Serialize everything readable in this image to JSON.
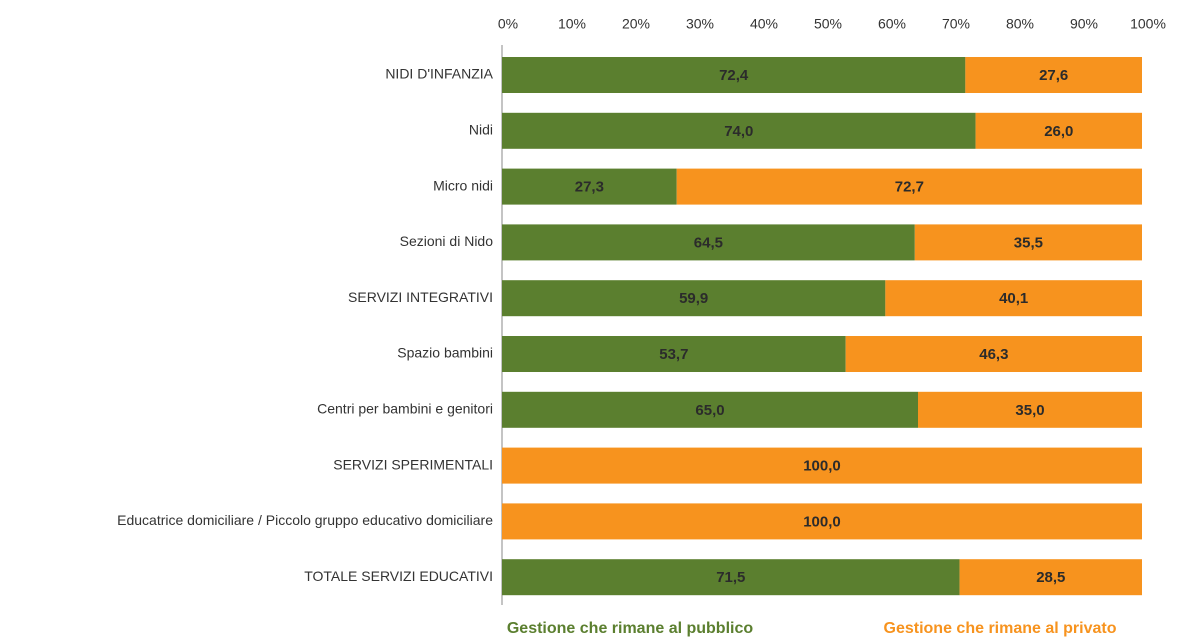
{
  "chart_data": {
    "type": "stacked_bar_horizontal",
    "categories": [
      "NIDI D'INFANZIA",
      "Nidi",
      "Micro nidi",
      "Sezioni di Nido",
      "SERVIZI INTEGRATIVI",
      "Spazio bambini",
      "Centri per bambini e genitori",
      "SERVIZI SPERIMENTALI",
      "Educatrice domiciliare / Piccolo gruppo educativo domiciliare",
      "TOTALE SERVIZI EDUCATIVI"
    ],
    "series": [
      {
        "name": "Gestione che rimane al pubblico",
        "color": "#5b7f2f",
        "values": [
          72.4,
          74.0,
          27.3,
          64.5,
          59.9,
          53.7,
          65.0,
          0,
          0,
          71.5
        ],
        "value_labels": [
          "72,4",
          "74,0",
          "27,3",
          "64,5",
          "59,9",
          "53,7",
          "65,0",
          null,
          null,
          "71,5"
        ]
      },
      {
        "name": "Gestione che rimane al privato",
        "color": "#f7931e",
        "values": [
          27.6,
          26.0,
          72.7,
          35.5,
          40.1,
          46.3,
          35.0,
          100.0,
          100.0,
          28.5
        ],
        "value_labels": [
          "27,6",
          "26,0",
          "72,7",
          "35,5",
          "40,1",
          "46,3",
          "35,0",
          "100,0",
          "100,0",
          "28,5"
        ]
      }
    ],
    "xlim": [
      0,
      100
    ],
    "xticks": [
      {
        "value": 0,
        "label": "0%"
      },
      {
        "value": 10,
        "label": "10%"
      },
      {
        "value": 20,
        "label": "20%"
      },
      {
        "value": 30,
        "label": "30%"
      },
      {
        "value": 40,
        "label": "40%"
      },
      {
        "value": 50,
        "label": "50%"
      },
      {
        "value": 60,
        "label": "60%"
      },
      {
        "value": 70,
        "label": "70%"
      },
      {
        "value": 80,
        "label": "80%"
      },
      {
        "value": 90,
        "label": "90%"
      },
      {
        "value": 100,
        "label": "100%"
      }
    ],
    "legend": "bottom"
  }
}
